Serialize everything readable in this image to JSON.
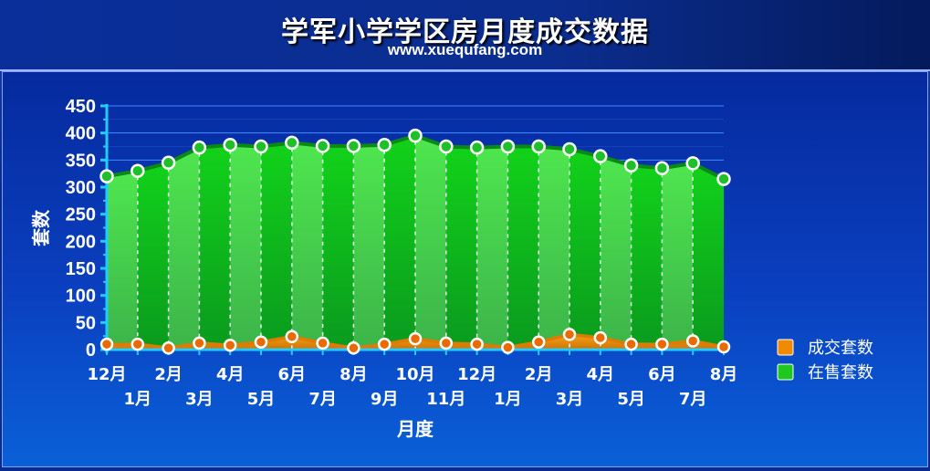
{
  "header": {
    "title": "学军小学学区房月度成交数据",
    "subtitle": "www.xuequfang.com"
  },
  "chart_data": {
    "type": "area",
    "xlabel": "月度",
    "ylabel": "套数",
    "ylim": [
      0,
      450
    ],
    "yticks": [
      0,
      50,
      100,
      150,
      200,
      250,
      300,
      350,
      400,
      450
    ],
    "categories": [
      "12月",
      "1月",
      "2月",
      "3月",
      "4月",
      "5月",
      "6月",
      "7月",
      "8月",
      "9月",
      "10月",
      "11月",
      "12月",
      "1月",
      "2月",
      "3月",
      "4月",
      "5月",
      "6月",
      "7月",
      "8月"
    ],
    "series": [
      {
        "name": "在售套数",
        "color": "#1ec81e",
        "values": [
          320,
          330,
          345,
          373,
          378,
          375,
          382,
          376,
          376,
          378,
          395,
          375,
          373,
          375,
          375,
          370,
          357,
          340,
          335,
          344,
          315
        ]
      },
      {
        "name": "成交套数",
        "color": "#f08a00",
        "values": [
          10,
          10,
          3,
          12,
          8,
          14,
          24,
          12,
          3,
          10,
          20,
          12,
          10,
          4,
          14,
          28,
          22,
          10,
          10,
          16,
          5
        ]
      }
    ],
    "legend_position": "right",
    "legend": [
      {
        "label": "成交套数",
        "color": "#f08a00"
      },
      {
        "label": "在售套数",
        "color": "#1ec81e"
      }
    ]
  }
}
